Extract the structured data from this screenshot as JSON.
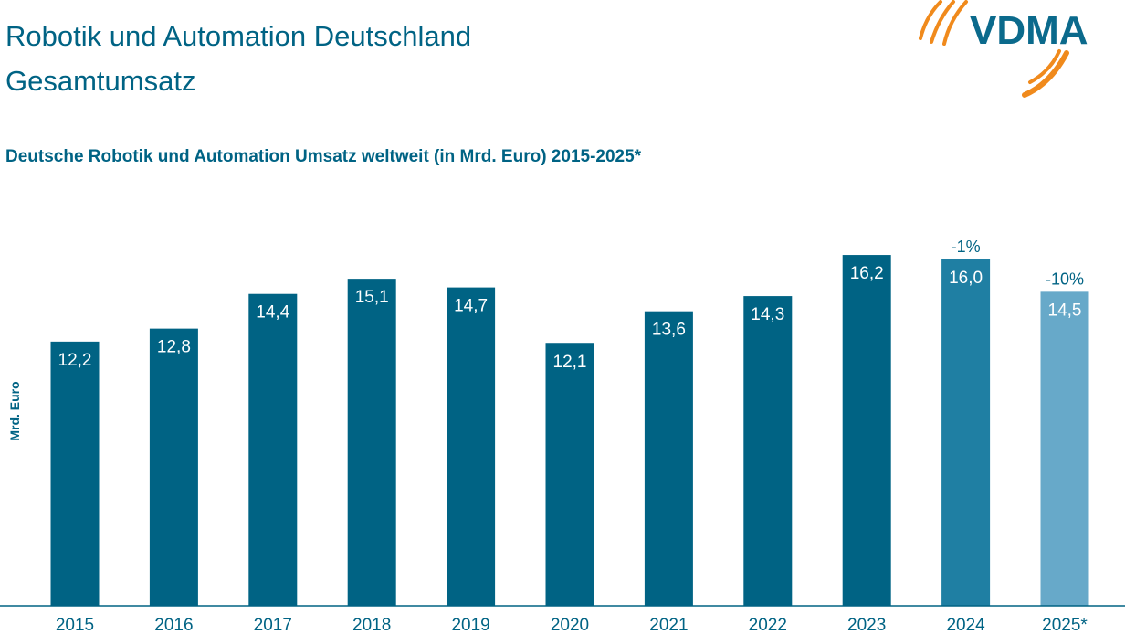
{
  "header": {
    "title_line1": "Robotik und Automation Deutschland",
    "title_line2": "Gesamtumsatz"
  },
  "logo": {
    "text": "VDMA",
    "icon": "vdma-swoosh-logo"
  },
  "colors": {
    "title": "#006384",
    "bar_historic": "#006384",
    "bar_2024": "#1f7fa3",
    "bar_2025": "#67a9c9",
    "axis": "#006384",
    "logo_text": "#0b6a8c",
    "logo_swoosh": "#f08a1c"
  },
  "chart_data": {
    "type": "bar",
    "title": "Deutsche Robotik und Automation Umsatz weltweit (in Mrd. Euro) 2015-2025*",
    "xlabel": "",
    "ylabel": "Mrd. Euro",
    "ylim": [
      0,
      17.5
    ],
    "grid": false,
    "legend": "none",
    "categories": [
      "2015",
      "2016",
      "2017",
      "2018",
      "2019",
      "2020",
      "2021",
      "2022",
      "2023",
      "2024",
      "2025*"
    ],
    "values": [
      12.2,
      12.8,
      14.4,
      15.1,
      14.7,
      12.1,
      13.6,
      14.3,
      16.2,
      16.0,
      14.5
    ],
    "value_labels": [
      "12,2",
      "12,8",
      "14,4",
      "15,1",
      "14,7",
      "12,1",
      "13,6",
      "14,3",
      "16,2",
      "16,0",
      "14,5"
    ],
    "annotations": [
      {
        "category": "2024",
        "text": "-1%"
      },
      {
        "category": "2025*",
        "text": "-10%"
      }
    ]
  }
}
